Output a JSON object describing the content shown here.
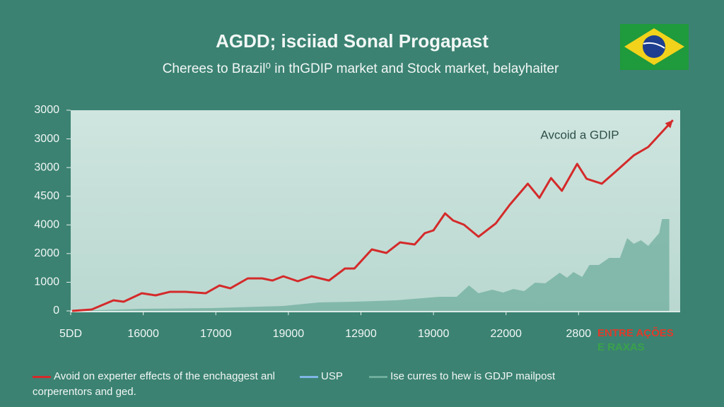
{
  "chart_data": {
    "type": "line",
    "title": "AGDD; isciiad Sonal Progapast",
    "subtitle": "Cherees to Brazil⁰ in thGDIP market and Stock market, belayhaiter",
    "annotation": "Avcoid a GDIP",
    "watermark": [
      "ENTRE AÇÕES",
      "E RAXAS"
    ],
    "xlim": [
      0,
      8.4
    ],
    "xticks": [
      {
        "value": 0,
        "label": "5DD"
      },
      {
        "value": 1,
        "label": "16000"
      },
      {
        "value": 2,
        "label": "17000"
      },
      {
        "value": 3,
        "label": "19000"
      },
      {
        "value": 4,
        "label": "12900"
      },
      {
        "value": 5,
        "label": "19000"
      },
      {
        "value": 6,
        "label": "22000"
      },
      {
        "value": 7,
        "label": "2800"
      }
    ],
    "ylim": [
      0,
      7000
    ],
    "yticks": [
      0,
      1000,
      2000,
      {
        "value": 3000,
        "label": "4000"
      },
      {
        "value": 4000,
        "label": "4500"
      },
      {
        "value": 5000,
        "label": "3000"
      },
      {
        "value": 6000,
        "label": "3000"
      },
      {
        "value": 7000,
        "label": "3000"
      }
    ],
    "series": [
      {
        "name": "Avoid on experter effects of the enchaggest anl corperentors and ged.",
        "color": "#d42a2a",
        "kind": "line",
        "x": [
          0.02,
          0.29,
          0.59,
          0.73,
          0.98,
          1.17,
          1.37,
          1.58,
          1.86,
          2.05,
          2.2,
          2.44,
          2.64,
          2.78,
          2.93,
          3.13,
          3.32,
          3.56,
          3.78,
          3.91,
          4.15,
          4.35,
          4.54,
          4.74,
          4.88,
          5.0,
          5.16,
          5.27,
          5.42,
          5.62,
          5.86,
          6.05,
          6.3,
          6.46,
          6.62,
          6.77,
          6.98,
          7.11,
          7.32,
          7.52,
          7.76,
          7.96,
          8.3
        ],
        "values": [
          0,
          49,
          370,
          320,
          616,
          542,
          666,
          666,
          616,
          887,
          788,
          1134,
          1134,
          1060,
          1208,
          1035,
          1208,
          1060,
          1479,
          1479,
          2144,
          2021,
          2391,
          2317,
          2711,
          2810,
          3401,
          3155,
          3007,
          2588,
          3056,
          3697,
          4437,
          3944,
          4634,
          4190,
          5127,
          4609,
          4437,
          4880,
          5423,
          5718,
          6655
        ]
      },
      {
        "name": "USP",
        "color": "#7fb6e6",
        "kind": "line",
        "x": [],
        "values": []
      },
      {
        "name": "Ise curres to hew is GDJP mailpost",
        "color": "#6fae9c",
        "kind": "area",
        "x": [
          0,
          0.98,
          1.95,
          2.93,
          3.42,
          3.91,
          4.49,
          5.08,
          5.32,
          5.49,
          5.62,
          5.81,
          5.96,
          6.1,
          6.25,
          6.4,
          6.54,
          6.74,
          6.84,
          6.93,
          7.05,
          7.15,
          7.28,
          7.42,
          7.57,
          7.67,
          7.76,
          7.86,
          7.96,
          8.11,
          8.15,
          8.25
        ],
        "values": [
          0,
          74,
          99,
          173,
          296,
          320,
          370,
          493,
          493,
          887,
          616,
          740,
          641,
          764,
          690,
          986,
          961,
          1331,
          1159,
          1356,
          1183,
          1602,
          1602,
          1849,
          1849,
          2539,
          2342,
          2465,
          2268,
          2712,
          3204,
          3204
        ]
      }
    ]
  }
}
